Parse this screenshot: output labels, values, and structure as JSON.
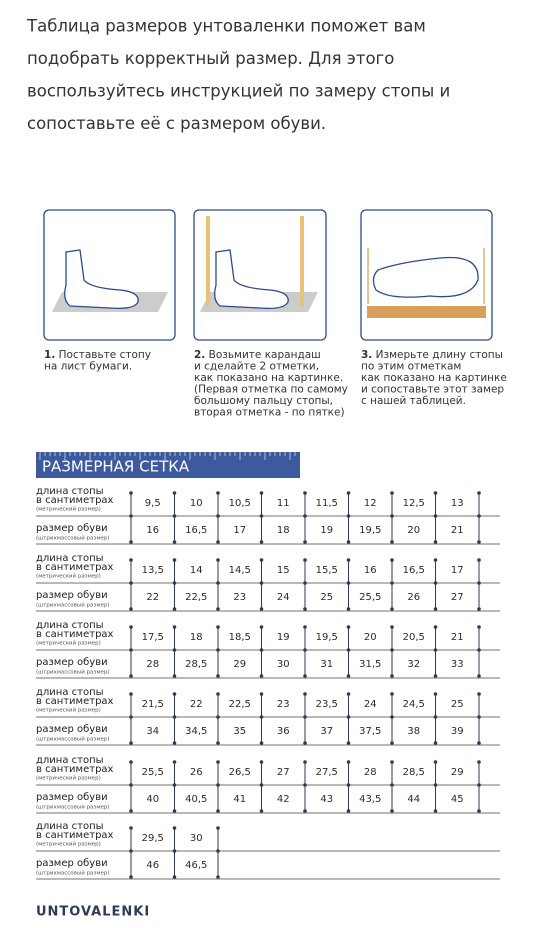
{
  "intro": [
    "Таблица размеров унтоваленки поможет вам",
    "подобрать корректный размер. Для этого",
    "воспользуйтесь инструкцией по замеру стопы и",
    "сопоставьте её с размером обуви."
  ],
  "steps": [
    {
      "number": "1.",
      "lines": [
        "Поставьте стопу",
        "на лист бумаги."
      ]
    },
    {
      "number": "2.",
      "lines": [
        "Возьмите карандаш",
        "и сделайте 2 отметки,",
        "как показано на картинке.",
        "(Первая отметка по самому",
        "большому пальцу стопы,",
        "вторая отметка - по пятке)"
      ]
    },
    {
      "number": "3.",
      "lines": [
        "Измерьте длину стопы",
        "по этим отметкам",
        "как показано на картинке",
        "и сопоставьте этот замер",
        "с нашей таблицей."
      ]
    }
  ],
  "table": {
    "title": "РАЗМЕРНАЯ СЕТКА",
    "foot_label": [
      "длина стопы",
      "в сантиметрах",
      "(метрический размер)"
    ],
    "shoe_label": [
      "размер обуви",
      "(штрихмассовый размер)"
    ],
    "groups": [
      {
        "foot": [
          "9,5",
          "10",
          "10,5",
          "11",
          "11,5",
          "12",
          "12,5",
          "13"
        ],
        "shoe": [
          "16",
          "16,5",
          "17",
          "18",
          "19",
          "19,5",
          "20",
          "21"
        ]
      },
      {
        "foot": [
          "13,5",
          "14",
          "14,5",
          "15",
          "15,5",
          "16",
          "16,5",
          "17"
        ],
        "shoe": [
          "22",
          "22,5",
          "23",
          "24",
          "25",
          "25,5",
          "26",
          "27"
        ]
      },
      {
        "foot": [
          "17,5",
          "18",
          "18,5",
          "19",
          "19,5",
          "20",
          "20,5",
          "21"
        ],
        "shoe": [
          "28",
          "28,5",
          "29",
          "30",
          "31",
          "31,5",
          "32",
          "33"
        ]
      },
      {
        "foot": [
          "21,5",
          "22",
          "22,5",
          "23",
          "23,5",
          "24",
          "24,5",
          "25"
        ],
        "shoe": [
          "34",
          "34,5",
          "35",
          "36",
          "37",
          "37,5",
          "38",
          "39"
        ]
      },
      {
        "foot": [
          "25,5",
          "26",
          "26,5",
          "27",
          "27,5",
          "28",
          "28,5",
          "29"
        ],
        "shoe": [
          "40",
          "40,5",
          "41",
          "42",
          "43",
          "43,5",
          "44",
          "45"
        ]
      },
      {
        "foot": [
          "29,5",
          "30"
        ],
        "shoe": [
          "46",
          "46,5"
        ]
      }
    ]
  },
  "brand": "UNTOVALENKI"
}
